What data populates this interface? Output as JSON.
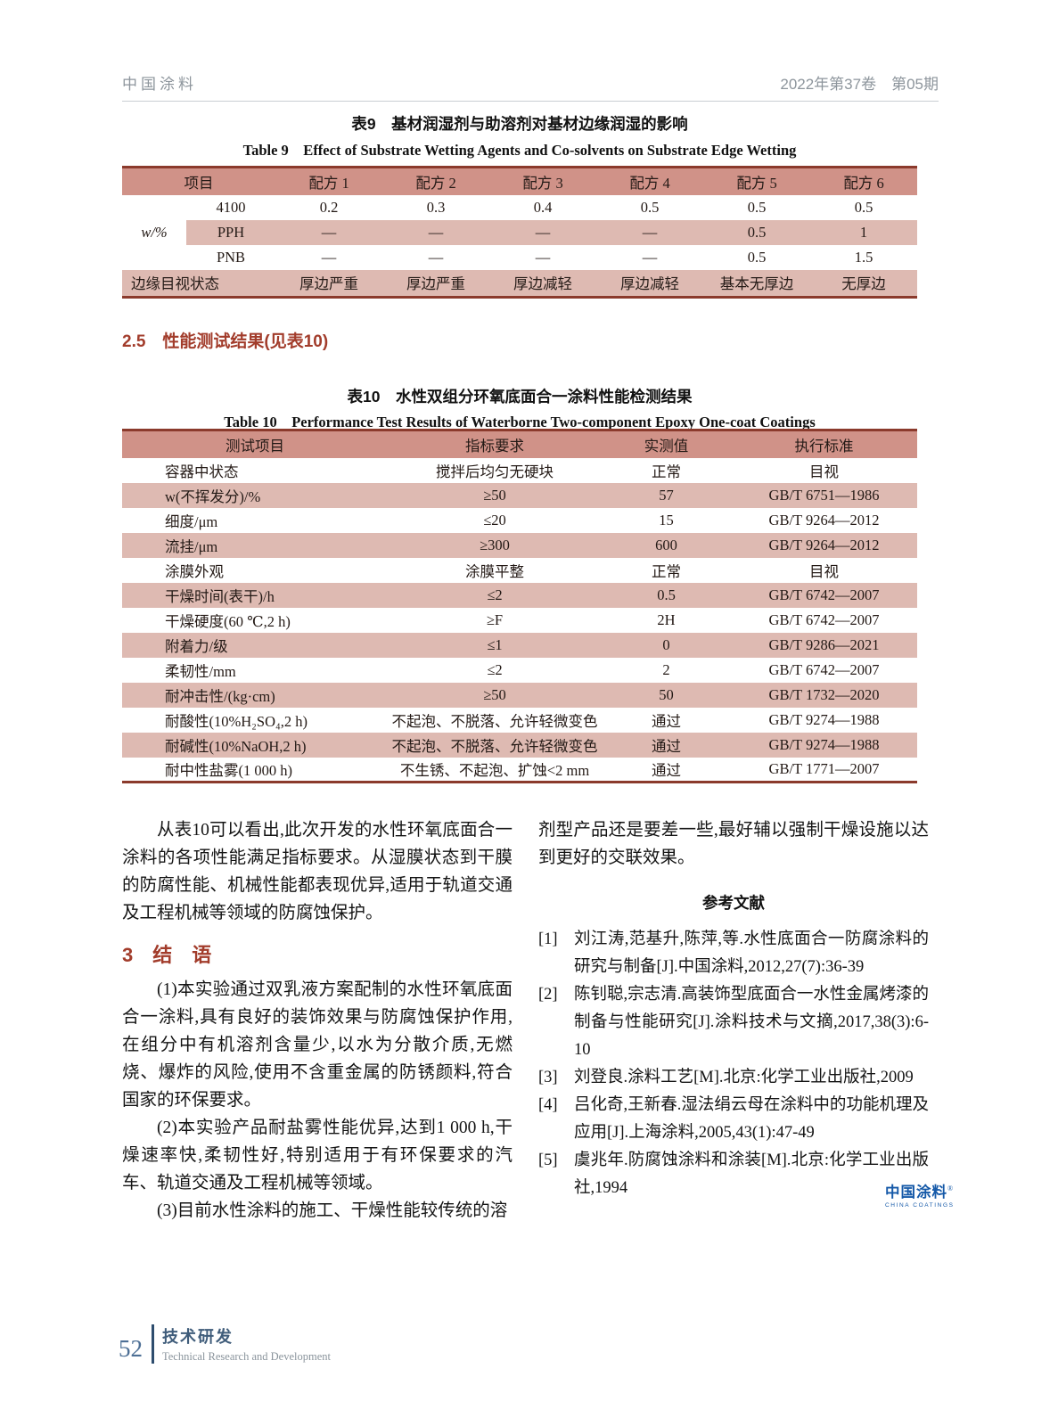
{
  "colors": {
    "accent_red": "#a23c2b",
    "table_border_red": "#8b3a2c",
    "table_header_bg": "#d09288",
    "table_stripe_bg": "#debab2",
    "logo_blue": "#1559a8",
    "header_gray": "#8d959c"
  },
  "header": {
    "journal": "中国涂料",
    "issue": "2022年第37卷　第05期"
  },
  "table9": {
    "caption_zh": "表9　基材润湿剂与助溶剂对基材边缘润湿的影响",
    "caption_en": "Table 9　Effect of Substrate Wetting Agents and Co-solvents on Substrate Edge Wetting",
    "header": [
      "项目",
      "配方 1",
      "配方 2",
      "配方 3",
      "配方 4",
      "配方 5",
      "配方 6"
    ],
    "group_label": "w/%",
    "rows": [
      {
        "item": "4100",
        "values": [
          "0.2",
          "0.3",
          "0.4",
          "0.5",
          "0.5",
          "0.5"
        ]
      },
      {
        "item": "PPH",
        "values": [
          "—",
          "—",
          "—",
          "—",
          "0.5",
          "1"
        ]
      },
      {
        "item": "PNB",
        "values": [
          "—",
          "—",
          "—",
          "—",
          "0.5",
          "1.5"
        ]
      }
    ],
    "footer": {
      "label": "边缘目视状态",
      "values": [
        "厚边严重",
        "厚边严重",
        "厚边减轻",
        "厚边减轻",
        "基本无厚边",
        "无厚边"
      ]
    }
  },
  "section25": {
    "title": "2.5　性能测试结果(见表10)"
  },
  "table10": {
    "caption_zh": "表10　水性双组分环氧底面合一涂料性能检测结果",
    "caption_en": "Table 10　Performance Test Results of Waterborne Two-component Epoxy One-coat Coatings",
    "header": [
      "测试项目",
      "指标要求",
      "实测值",
      "执行标准"
    ],
    "rows": [
      [
        "容器中状态",
        "搅拌后均匀无硬块",
        "正常",
        "目视"
      ],
      [
        "w(不挥发分)/%",
        "≥50",
        "57",
        "GB/T 6751—1986"
      ],
      [
        "细度/μm",
        "≤20",
        "15",
        "GB/T 9264—2012"
      ],
      [
        "流挂/μm",
        "≥300",
        "600",
        "GB/T 9264—2012"
      ],
      [
        "涂膜外观",
        "涂膜平整",
        "正常",
        "目视"
      ],
      [
        "干燥时间(表干)/h",
        "≤2",
        "0.5",
        "GB/T 6742—2007"
      ],
      [
        "干燥硬度(60 ℃,2 h)",
        "≥F",
        "2H",
        "GB/T 6742—2007"
      ],
      [
        "附着力/级",
        "≤1",
        "0",
        "GB/T 9286—2021"
      ],
      [
        "柔韧性/mm",
        "≤2",
        "2",
        "GB/T 6742—2007"
      ],
      [
        "耐冲击性/(kg·cm)",
        "≥50",
        "50",
        "GB/T 1732—2020"
      ],
      [
        "耐酸性(10%H₂SO₄,2 h)",
        "不起泡、不脱落、允许轻微变色",
        "通过",
        "GB/T 9274—1988"
      ],
      [
        "耐碱性(10%NaOH,2 h)",
        "不起泡、不脱落、允许轻微变色",
        "通过",
        "GB/T 9274—1988"
      ],
      [
        "耐中性盐雾(1 000 h)",
        "不生锈、不起泡、扩蚀<2 mm",
        "通过",
        "GB/T 1771—2007"
      ]
    ]
  },
  "body": {
    "left": {
      "p1": "从表10可以看出,此次开发的水性环氧底面合一涂料的各项性能满足指标要求。从湿膜状态到干膜的防腐性能、机械性能都表现优异,适用于轨道交通及工程机械等领域的防腐蚀保护。",
      "conclusion_title": "3　结　语",
      "p2": "(1)本实验通过双乳液方案配制的水性环氧底面合一涂料,具有良好的装饰效果与防腐蚀保护作用,在组分中有机溶剂含量少,以水为分散介质,无燃烧、爆炸的风险,使用不含重金属的防锈颜料,符合国家的环保要求。",
      "p3": "(2)本实验产品耐盐雾性能优异,达到1 000 h,干燥速率快,柔韧性好,特别适用于有环保要求的汽车、轨道交通及工程机械等领域。",
      "p4": "(3)目前水性涂料的施工、干燥性能较传统的溶"
    },
    "right": {
      "p1": "剂型产品还是要差一些,最好辅以强制干燥设施以达到更好的交联效果。",
      "references_title": "参考文献"
    }
  },
  "references": {
    "items": [
      {
        "marker": "[1]",
        "text": "刘江涛,范基升,陈萍,等.水性底面合一防腐涂料的研究与制备[J].中国涂料,2012,27(7):36-39"
      },
      {
        "marker": "[2]",
        "text": "陈钊聪,宗志清.高装饰型底面合一水性金属烤漆的制备与性能研究[J].涂料技术与文摘,2017,38(3):6-10"
      },
      {
        "marker": "[3]",
        "text": "刘登良.涂料工艺[M].北京:化学工业出版社,2009"
      },
      {
        "marker": "[4]",
        "text": "吕化奇,王新春.湿法绢云母在涂料中的功能机理及应用[J].上海涂料,2005,43(1):47-49"
      },
      {
        "marker": "[5]",
        "text": "虞兆年.防腐蚀涂料和涂装[M].北京:化学工业出版社,1994"
      }
    ]
  },
  "brand": {
    "zh": "中国涂料",
    "reg": "®",
    "en": "CHINA COATINGS"
  },
  "footer": {
    "page_number": "52",
    "column_zh": "技术研发",
    "column_en": "Technical Research and Development"
  }
}
